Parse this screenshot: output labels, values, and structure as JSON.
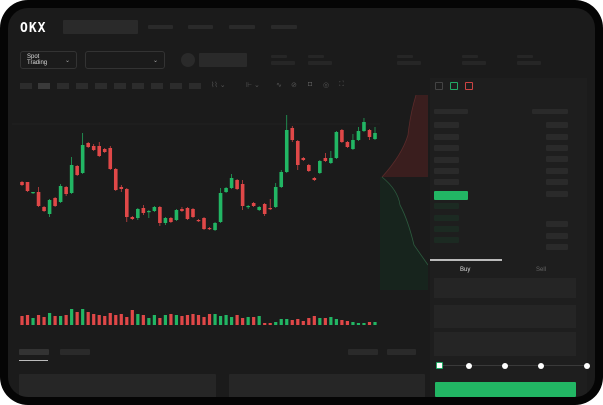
{
  "header": {
    "logo": "OKX"
  },
  "market": {
    "mode_select": "Spot Trading"
  },
  "order_form": {
    "tabs": [
      {
        "label": "Buy"
      },
      {
        "label": "Sell"
      }
    ],
    "active_tab": "Buy",
    "slider_percent": 0
  },
  "colors": {
    "up": "#22b664",
    "down": "#e04848",
    "background": "#1b1b1b"
  },
  "icons": [
    "chevron-down-icon",
    "line-tool-icon",
    "ruler-icon",
    "camera-icon",
    "settings-icon",
    "fullscreen-icon",
    "orderbook-both-icon",
    "orderbook-bids-icon",
    "orderbook-asks-icon"
  ],
  "chart_data": {
    "type": "candlestick",
    "title": "",
    "xlabel": "",
    "ylabel": "",
    "grid": false,
    "ohlc": [
      [
        118,
        119,
        114,
        115
      ],
      [
        118,
        118,
        108,
        109
      ],
      [
        107,
        108,
        106,
        108
      ],
      [
        108,
        113,
        93,
        94
      ],
      [
        93,
        94,
        88,
        89
      ],
      [
        86,
        101,
        83,
        100
      ],
      [
        102,
        103,
        93,
        94
      ],
      [
        98,
        116,
        97,
        114
      ],
      [
        113,
        114,
        104,
        106
      ],
      [
        107,
        143,
        106,
        135
      ],
      [
        134,
        135,
        124,
        125
      ],
      [
        127,
        167,
        126,
        155
      ],
      [
        157,
        158,
        152,
        153
      ],
      [
        154,
        156,
        149,
        150
      ],
      [
        154,
        158,
        143,
        144
      ],
      [
        151,
        152,
        147,
        148
      ],
      [
        152,
        154,
        130,
        131
      ],
      [
        131,
        132,
        109,
        110
      ],
      [
        113,
        115,
        108,
        111
      ],
      [
        111,
        112,
        78,
        83
      ],
      [
        83,
        84,
        80,
        81
      ],
      [
        82,
        92,
        80,
        91
      ],
      [
        92,
        95,
        85,
        87
      ],
      [
        88,
        90,
        82,
        89
      ],
      [
        89,
        94,
        88,
        93
      ],
      [
        93,
        94,
        74,
        77
      ],
      [
        77,
        83,
        75,
        82
      ],
      [
        82,
        83,
        77,
        78
      ],
      [
        80,
        91,
        79,
        90
      ],
      [
        91,
        93,
        88,
        89
      ],
      [
        92,
        93,
        80,
        81
      ],
      [
        91,
        92,
        82,
        83
      ],
      [
        80,
        81,
        78,
        79
      ],
      [
        82,
        83,
        70,
        71
      ],
      [
        72,
        73,
        70,
        71
      ],
      [
        70,
        78,
        69,
        77
      ],
      [
        78,
        112,
        77,
        107
      ],
      [
        108,
        113,
        107,
        112
      ],
      [
        112,
        126,
        111,
        122
      ],
      [
        120,
        121,
        110,
        111
      ],
      [
        116,
        120,
        90,
        94
      ],
      [
        93,
        95,
        91,
        94
      ],
      [
        97,
        98,
        93,
        94
      ],
      [
        90,
        94,
        89,
        93
      ],
      [
        96,
        97,
        84,
        86
      ],
      [
        92,
        101,
        90,
        91
      ],
      [
        93,
        117,
        92,
        113
      ],
      [
        113,
        130,
        112,
        128
      ],
      [
        128,
        185,
        127,
        170
      ],
      [
        172,
        174,
        158,
        160
      ],
      [
        159,
        160,
        130,
        135
      ],
      [
        142,
        143,
        139,
        140
      ],
      [
        135,
        136,
        128,
        129
      ],
      [
        122,
        123,
        119,
        120
      ],
      [
        127,
        140,
        126,
        139
      ],
      [
        142,
        147,
        138,
        139
      ],
      [
        137,
        149,
        136,
        142
      ],
      [
        142,
        169,
        141,
        168
      ],
      [
        170,
        171,
        157,
        158
      ],
      [
        158,
        159,
        152,
        153
      ],
      [
        151,
        166,
        150,
        160
      ],
      [
        160,
        173,
        159,
        169
      ],
      [
        169,
        182,
        168,
        178
      ],
      [
        170,
        171,
        160,
        163
      ],
      [
        161,
        173,
        160,
        167
      ]
    ],
    "volume": [
      9,
      10,
      7,
      10,
      8,
      12,
      9,
      9,
      10,
      16,
      13,
      16,
      13,
      11,
      10,
      9,
      12,
      10,
      11,
      8,
      15,
      11,
      10,
      7,
      10,
      7,
      10,
      11,
      10,
      9,
      10,
      11,
      10,
      8,
      11,
      11,
      9,
      10,
      8,
      10,
      7,
      8,
      8,
      9,
      2,
      2,
      3,
      6,
      6,
      5,
      6,
      4,
      7,
      9,
      7,
      7,
      8,
      6,
      5,
      4,
      3,
      2,
      2,
      3,
      3
    ]
  }
}
